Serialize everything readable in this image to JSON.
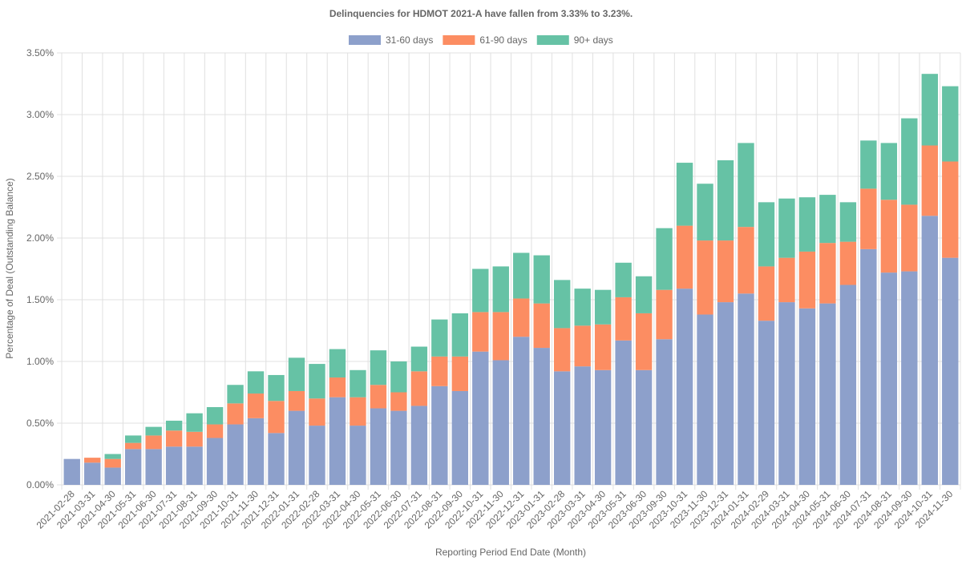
{
  "chart_data": {
    "type": "stacked-bar",
    "title": "Delinquencies for HDMOT 2021-A have fallen from 3.33% to 3.23%.",
    "x_label": "Reporting Period End Date (Month)",
    "y_label": "Percentage of Deal (Outstanding Balance)",
    "categories": [
      "2021-02-28",
      "2021-03-31",
      "2021-04-30",
      "2021-05-31",
      "2021-06-30",
      "2021-07-31",
      "2021-08-31",
      "2021-09-30",
      "2021-10-31",
      "2021-11-30",
      "2021-12-31",
      "2022-01-31",
      "2022-02-28",
      "2022-03-31",
      "2022-04-30",
      "2022-05-31",
      "2022-06-30",
      "2022-07-31",
      "2022-08-31",
      "2022-09-30",
      "2022-10-31",
      "2022-11-30",
      "2022-12-31",
      "2023-01-31",
      "2023-02-28",
      "2023-03-31",
      "2023-04-30",
      "2023-05-31",
      "2023-06-30",
      "2023-09-30",
      "2023-10-31",
      "2023-11-30",
      "2023-12-31",
      "2024-01-31",
      "2024-02-29",
      "2024-03-31",
      "2024-04-30",
      "2024-05-31",
      "2024-06-30",
      "2024-07-31",
      "2024-08-31",
      "2024-09-30",
      "2024-10-31",
      "2024-11-30"
    ],
    "series": [
      {
        "name": "31-60 days",
        "color": "#8da0cb",
        "values": [
          0.21,
          0.18,
          0.14,
          0.29,
          0.29,
          0.31,
          0.31,
          0.38,
          0.49,
          0.54,
          0.42,
          0.6,
          0.48,
          0.71,
          0.48,
          0.62,
          0.6,
          0.64,
          0.8,
          0.76,
          1.08,
          1.01,
          1.2,
          1.11,
          0.92,
          0.96,
          0.93,
          1.17,
          0.93,
          1.18,
          1.59,
          1.38,
          1.48,
          1.55,
          1.33,
          1.48,
          1.43,
          1.47,
          1.62,
          1.91,
          1.72,
          1.73,
          2.18,
          1.84
        ]
      },
      {
        "name": "61-90 days",
        "color": "#fc8d62",
        "values": [
          0,
          0.04,
          0.07,
          0.05,
          0.11,
          0.13,
          0.12,
          0.11,
          0.17,
          0.2,
          0.26,
          0.16,
          0.22,
          0.16,
          0.23,
          0.19,
          0.15,
          0.28,
          0.24,
          0.28,
          0.32,
          0.39,
          0.31,
          0.36,
          0.35,
          0.33,
          0.37,
          0.35,
          0.46,
          0.4,
          0.51,
          0.6,
          0.5,
          0.54,
          0.44,
          0.36,
          0.46,
          0.49,
          0.35,
          0.49,
          0.59,
          0.54,
          0.57,
          0.78
        ]
      },
      {
        "name": "90+ days",
        "color": "#66c2a5",
        "values": [
          0,
          0,
          0.04,
          0.06,
          0.07,
          0.08,
          0.15,
          0.14,
          0.15,
          0.18,
          0.21,
          0.27,
          0.28,
          0.23,
          0.22,
          0.28,
          0.25,
          0.2,
          0.3,
          0.35,
          0.35,
          0.37,
          0.37,
          0.39,
          0.39,
          0.3,
          0.28,
          0.28,
          0.3,
          0.5,
          0.51,
          0.46,
          0.65,
          0.68,
          0.52,
          0.48,
          0.44,
          0.39,
          0.32,
          0.39,
          0.46,
          0.7,
          0.58,
          0.61
        ]
      }
    ],
    "ylim": [
      0,
      3.5
    ],
    "yticks": [
      {
        "value": 0,
        "label": "0.00%"
      },
      {
        "value": 0.5,
        "label": "0.50%"
      },
      {
        "value": 1,
        "label": "1.00%"
      },
      {
        "value": 1.5,
        "label": "1.50%"
      },
      {
        "value": 2,
        "label": "2.00%"
      },
      {
        "value": 2.5,
        "label": "2.50%"
      },
      {
        "value": 3,
        "label": "3.00%"
      },
      {
        "value": 3.5,
        "label": "3.50%"
      }
    ],
    "grid": true
  }
}
